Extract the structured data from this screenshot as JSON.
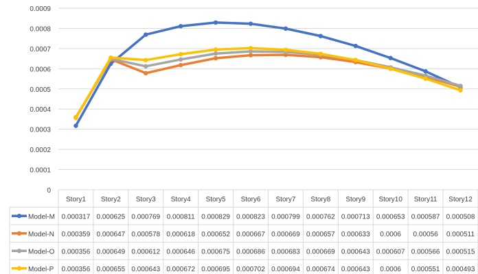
{
  "chart_data": {
    "type": "line",
    "title": "",
    "xlabel": "",
    "ylabel": "",
    "ylim": [
      0,
      0.0009
    ],
    "yticks": [
      "0",
      "0.0001",
      "0.0002",
      "0.0003",
      "0.0004",
      "0.0005",
      "0.0006",
      "0.0007",
      "0.0008",
      "0.0009"
    ],
    "grid": true,
    "legend": "data-table-left",
    "categories": [
      "Story1",
      "Story2",
      "Story3",
      "Story4",
      "Story5",
      "Story6",
      "Story7",
      "Story8",
      "Story9",
      "Story10",
      "Story11",
      "Story12"
    ],
    "series": [
      {
        "name": "Model-M",
        "color": "#4472c4",
        "labels": [
          "0.000317",
          "0.000625",
          "0.000769",
          "0.000811",
          "0.000829",
          "0.000823",
          "0.000799",
          "0.000762",
          "0.000713",
          "0.000653",
          "0.000587",
          "0.000508"
        ],
        "values": [
          0.000317,
          0.000625,
          0.000769,
          0.000811,
          0.000829,
          0.000823,
          0.000799,
          0.000762,
          0.000713,
          0.000653,
          0.000587,
          0.000508
        ]
      },
      {
        "name": "Model-N",
        "color": "#ed7d31",
        "labels": [
          "0.000359",
          "0.000647",
          "0.000578",
          "0.000618",
          "0.000652",
          "0.000667",
          "0.000669",
          "0.000657",
          "0.000633",
          "0.0006",
          "0.00056",
          "0.000511"
        ],
        "values": [
          0.000359,
          0.000647,
          0.000578,
          0.000618,
          0.000652,
          0.000667,
          0.000669,
          0.000657,
          0.000633,
          0.0006,
          0.00056,
          0.000511
        ]
      },
      {
        "name": "Model-O",
        "color": "#a5a5a5",
        "labels": [
          "0.000356",
          "0.000649",
          "0.000612",
          "0.000646",
          "0.000675",
          "0.000686",
          "0.000683",
          "0.000669",
          "0.000643",
          "0.000607",
          "0.000566",
          "0.000515"
        ],
        "values": [
          0.000356,
          0.000649,
          0.000612,
          0.000646,
          0.000675,
          0.000686,
          0.000683,
          0.000669,
          0.000643,
          0.000607,
          0.000566,
          0.000515
        ]
      },
      {
        "name": "Model-P",
        "color": "#ffc000",
        "labels": [
          "0.000356",
          "0.000655",
          "0.000643",
          "0.000672",
          "0.000695",
          "0.000702",
          "0.000694",
          "0.000674",
          "0.000643",
          "0.0006",
          "0.000551",
          "0.000493"
        ],
        "values": [
          0.000356,
          0.000655,
          0.000643,
          0.000672,
          0.000695,
          0.000702,
          0.000694,
          0.000674,
          0.000643,
          0.0006,
          0.000551,
          0.000493
        ]
      }
    ]
  }
}
